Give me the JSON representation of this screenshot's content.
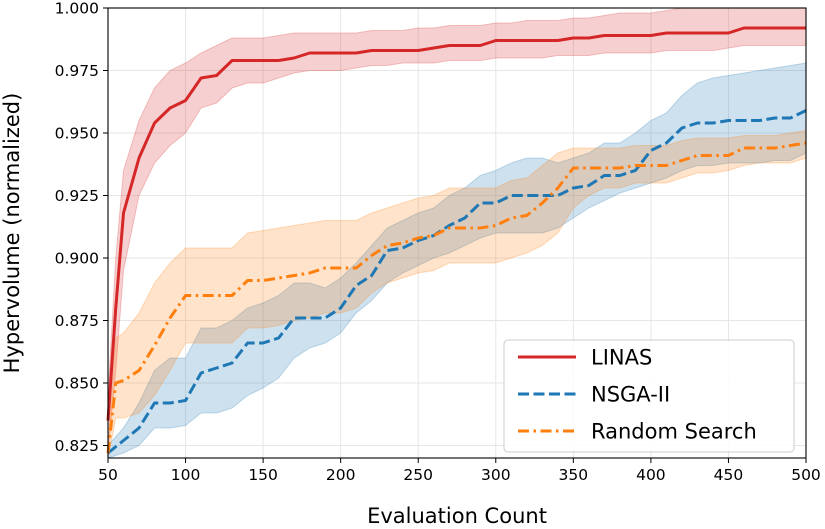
{
  "chart_data": {
    "type": "line",
    "title": "",
    "xlabel": "Evaluation Count",
    "ylabel": "Hypervolume (normalized)",
    "xlim": [
      50,
      500
    ],
    "ylim": [
      0.82,
      1.0
    ],
    "xticks": [
      50,
      100,
      150,
      200,
      250,
      300,
      350,
      400,
      450,
      500
    ],
    "xtick_labels": [
      "50",
      "100",
      "150",
      "200",
      "250",
      "300",
      "350",
      "400",
      "450",
      "500"
    ],
    "yticks": [
      0.825,
      0.85,
      0.875,
      0.9,
      0.925,
      0.95,
      0.975,
      1.0
    ],
    "ytick_labels": [
      "0.825",
      "0.850",
      "0.875",
      "0.900",
      "0.925",
      "0.950",
      "0.975",
      "1.000"
    ],
    "grid": true,
    "legend_position": "lower-right",
    "series": [
      {
        "name": "LINAS",
        "color": "#d62728",
        "linestyle": "solid",
        "x": [
          50,
          55,
          60,
          70,
          80,
          90,
          100,
          110,
          120,
          130,
          140,
          150,
          160,
          170,
          180,
          190,
          200,
          210,
          220,
          230,
          240,
          250,
          260,
          270,
          280,
          290,
          300,
          310,
          320,
          330,
          340,
          350,
          360,
          370,
          380,
          390,
          400,
          410,
          420,
          430,
          440,
          450,
          460,
          470,
          480,
          490,
          500
        ],
        "values": [
          0.835,
          0.88,
          0.918,
          0.94,
          0.954,
          0.96,
          0.963,
          0.972,
          0.973,
          0.979,
          0.979,
          0.979,
          0.979,
          0.98,
          0.982,
          0.982,
          0.982,
          0.982,
          0.983,
          0.983,
          0.983,
          0.983,
          0.984,
          0.985,
          0.985,
          0.985,
          0.987,
          0.987,
          0.987,
          0.987,
          0.987,
          0.988,
          0.988,
          0.989,
          0.989,
          0.989,
          0.989,
          0.99,
          0.99,
          0.99,
          0.99,
          0.99,
          0.992,
          0.992,
          0.992,
          0.992,
          0.992
        ],
        "lower": [
          0.822,
          0.855,
          0.895,
          0.925,
          0.938,
          0.945,
          0.95,
          0.96,
          0.962,
          0.968,
          0.97,
          0.97,
          0.972,
          0.974,
          0.975,
          0.975,
          0.975,
          0.976,
          0.977,
          0.977,
          0.978,
          0.978,
          0.978,
          0.979,
          0.979,
          0.979,
          0.98,
          0.98,
          0.98,
          0.98,
          0.981,
          0.981,
          0.981,
          0.982,
          0.982,
          0.982,
          0.982,
          0.983,
          0.983,
          0.983,
          0.983,
          0.984,
          0.985,
          0.985,
          0.985,
          0.985,
          0.985
        ],
        "upper": [
          0.845,
          0.9,
          0.935,
          0.955,
          0.968,
          0.975,
          0.978,
          0.982,
          0.985,
          0.988,
          0.988,
          0.988,
          0.989,
          0.99,
          0.99,
          0.99,
          0.99,
          0.99,
          0.991,
          0.991,
          0.991,
          0.992,
          0.992,
          0.993,
          0.993,
          0.993,
          0.994,
          0.994,
          0.995,
          0.995,
          0.995,
          0.996,
          0.996,
          0.997,
          0.998,
          0.998,
          0.998,
          0.999,
          1.0,
          1.0,
          1.0,
          1.0,
          1.0,
          1.0,
          1.0,
          1.0,
          1.0
        ]
      },
      {
        "name": "NSGA-II",
        "color": "#1f77b4",
        "linestyle": "dashed",
        "x": [
          50,
          60,
          70,
          80,
          90,
          100,
          110,
          120,
          130,
          140,
          150,
          160,
          170,
          180,
          190,
          200,
          210,
          220,
          230,
          240,
          250,
          260,
          270,
          280,
          290,
          300,
          310,
          320,
          330,
          340,
          350,
          360,
          370,
          380,
          390,
          400,
          410,
          420,
          430,
          440,
          450,
          460,
          470,
          480,
          490,
          500
        ],
        "values": [
          0.822,
          0.827,
          0.832,
          0.842,
          0.842,
          0.843,
          0.854,
          0.856,
          0.858,
          0.866,
          0.866,
          0.868,
          0.876,
          0.876,
          0.876,
          0.88,
          0.889,
          0.893,
          0.903,
          0.904,
          0.907,
          0.909,
          0.913,
          0.916,
          0.922,
          0.922,
          0.925,
          0.925,
          0.925,
          0.925,
          0.928,
          0.929,
          0.933,
          0.933,
          0.935,
          0.943,
          0.946,
          0.952,
          0.954,
          0.954,
          0.955,
          0.955,
          0.955,
          0.956,
          0.956,
          0.959
        ],
        "lower": [
          0.82,
          0.822,
          0.825,
          0.832,
          0.832,
          0.833,
          0.838,
          0.838,
          0.84,
          0.845,
          0.848,
          0.852,
          0.86,
          0.864,
          0.866,
          0.87,
          0.878,
          0.883,
          0.89,
          0.894,
          0.897,
          0.9,
          0.902,
          0.905,
          0.908,
          0.91,
          0.91,
          0.91,
          0.91,
          0.912,
          0.916,
          0.92,
          0.923,
          0.926,
          0.928,
          0.93,
          0.932,
          0.935,
          0.937,
          0.937,
          0.938,
          0.938,
          0.938,
          0.939,
          0.939,
          0.942
        ],
        "upper": [
          0.825,
          0.832,
          0.842,
          0.855,
          0.86,
          0.86,
          0.872,
          0.872,
          0.875,
          0.88,
          0.882,
          0.885,
          0.89,
          0.89,
          0.888,
          0.892,
          0.898,
          0.905,
          0.912,
          0.915,
          0.918,
          0.92,
          0.925,
          0.928,
          0.933,
          0.935,
          0.938,
          0.94,
          0.94,
          0.938,
          0.94,
          0.942,
          0.946,
          0.946,
          0.95,
          0.955,
          0.958,
          0.965,
          0.97,
          0.972,
          0.973,
          0.974,
          0.975,
          0.976,
          0.977,
          0.978
        ]
      },
      {
        "name": "Random Search",
        "color": "#ff7f0e",
        "linestyle": "dashdot",
        "x": [
          50,
          55,
          60,
          70,
          80,
          90,
          100,
          110,
          120,
          130,
          140,
          150,
          160,
          170,
          180,
          190,
          200,
          210,
          220,
          230,
          240,
          250,
          260,
          270,
          280,
          290,
          300,
          310,
          320,
          330,
          340,
          350,
          360,
          370,
          380,
          390,
          400,
          410,
          420,
          430,
          440,
          450,
          460,
          470,
          480,
          490,
          500
        ],
        "values": [
          0.822,
          0.85,
          0.851,
          0.855,
          0.865,
          0.876,
          0.885,
          0.885,
          0.885,
          0.885,
          0.891,
          0.891,
          0.892,
          0.893,
          0.894,
          0.896,
          0.896,
          0.896,
          0.901,
          0.905,
          0.906,
          0.908,
          0.909,
          0.912,
          0.912,
          0.912,
          0.913,
          0.916,
          0.917,
          0.922,
          0.928,
          0.936,
          0.936,
          0.936,
          0.936,
          0.937,
          0.937,
          0.937,
          0.939,
          0.941,
          0.941,
          0.941,
          0.944,
          0.944,
          0.944,
          0.945,
          0.946
        ],
        "lower": [
          0.82,
          0.836,
          0.836,
          0.838,
          0.845,
          0.855,
          0.866,
          0.866,
          0.866,
          0.866,
          0.872,
          0.872,
          0.873,
          0.875,
          0.876,
          0.878,
          0.878,
          0.88,
          0.886,
          0.89,
          0.892,
          0.894,
          0.895,
          0.898,
          0.898,
          0.898,
          0.898,
          0.9,
          0.902,
          0.905,
          0.91,
          0.92,
          0.925,
          0.928,
          0.928,
          0.93,
          0.93,
          0.93,
          0.932,
          0.934,
          0.934,
          0.935,
          0.937,
          0.938,
          0.938,
          0.938,
          0.94
        ],
        "upper": [
          0.824,
          0.868,
          0.87,
          0.878,
          0.89,
          0.898,
          0.904,
          0.904,
          0.904,
          0.904,
          0.91,
          0.911,
          0.912,
          0.913,
          0.914,
          0.915,
          0.915,
          0.915,
          0.918,
          0.92,
          0.922,
          0.924,
          0.925,
          0.928,
          0.928,
          0.928,
          0.928,
          0.931,
          0.932,
          0.937,
          0.942,
          0.944,
          0.944,
          0.944,
          0.944,
          0.945,
          0.945,
          0.945,
          0.947,
          0.948,
          0.948,
          0.948,
          0.949,
          0.949,
          0.949,
          0.95,
          0.951
        ]
      }
    ]
  }
}
